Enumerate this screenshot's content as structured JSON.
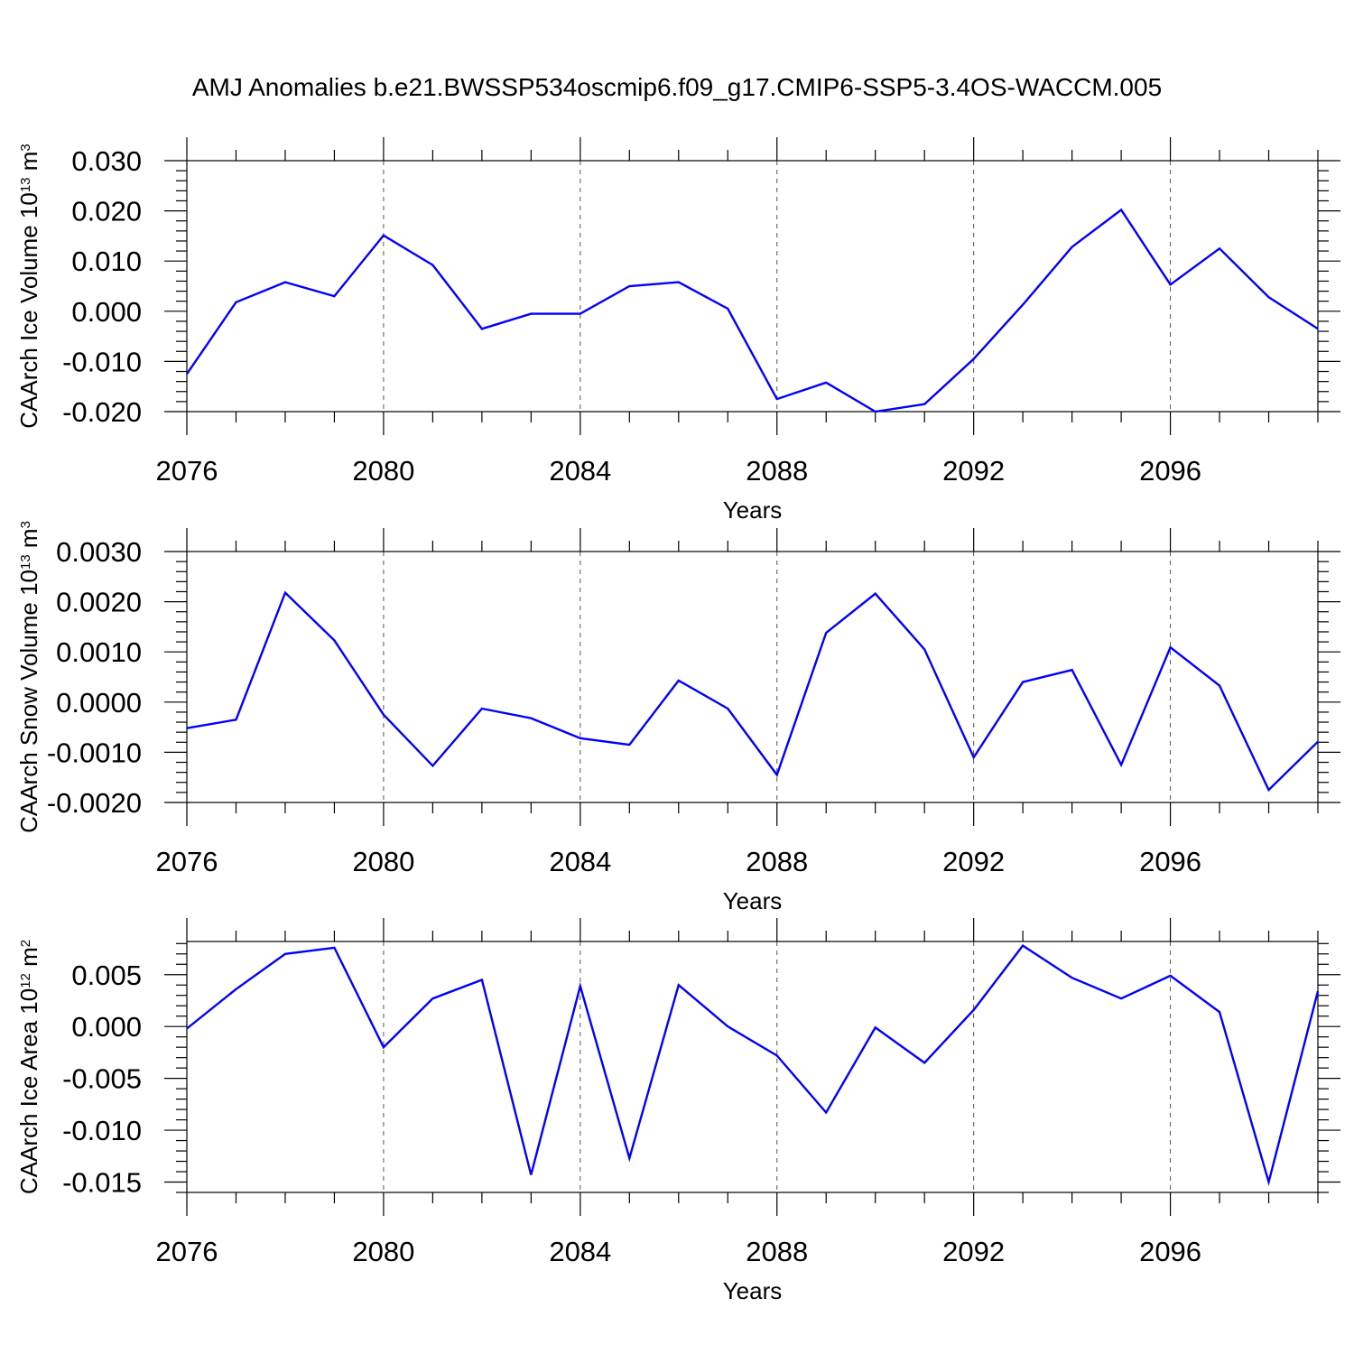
{
  "title": "AMJ Anomalies b.e21.BWSSP534oscmip6.f09_g17.CMIP6-SSP5-3.4OS-WACCM.005",
  "colors": {
    "series": "#0000ff",
    "frame": "#000000",
    "grid": "#555555"
  },
  "chart_data": [
    {
      "type": "line",
      "ylabel": {
        "text": "CAArch Ice Volume 10",
        "exponent": "13",
        "unit": "m",
        "unit_exponent": "3"
      },
      "xlabel": "Years",
      "xlim": [
        2076,
        2099
      ],
      "ylim": [
        -0.02,
        0.03
      ],
      "grid": {
        "x": "dashed",
        "y": false
      },
      "x_ticks": [
        2076,
        2080,
        2084,
        2088,
        2092,
        2096
      ],
      "x_tick_labels": [
        "2076",
        "2080",
        "2084",
        "2088",
        "2092",
        "2096"
      ],
      "y_ticks": [
        -0.02,
        -0.01,
        0.0,
        0.01,
        0.02,
        0.03
      ],
      "y_tick_labels": [
        "-0.020",
        "-0.010",
        "0.000",
        "0.010",
        "0.020",
        "0.030"
      ],
      "x": [
        2076,
        2077,
        2078,
        2079,
        2080,
        2081,
        2082,
        2083,
        2084,
        2085,
        2086,
        2087,
        2088,
        2089,
        2090,
        2091,
        2092,
        2093,
        2094,
        2095,
        2096,
        2097,
        2098,
        2099
      ],
      "y": [
        -0.0125,
        0.0018,
        0.0058,
        0.003,
        0.0151,
        0.0092,
        -0.0035,
        -0.0005,
        -0.0005,
        0.005,
        0.0058,
        0.0005,
        -0.0175,
        -0.0142,
        -0.02,
        -0.0185,
        -0.0095,
        0.0013,
        0.0128,
        0.0202,
        0.0053,
        0.0125,
        0.0028,
        -0.0035
      ]
    },
    {
      "type": "line",
      "ylabel": {
        "text": "CAArch Snow Volume 10",
        "exponent": "13",
        "unit": "m",
        "unit_exponent": "3"
      },
      "xlabel": "Years",
      "xlim": [
        2076,
        2099
      ],
      "ylim": [
        -0.002,
        0.003
      ],
      "grid": {
        "x": "dashed",
        "y": false
      },
      "x_ticks": [
        2076,
        2080,
        2084,
        2088,
        2092,
        2096
      ],
      "x_tick_labels": [
        "2076",
        "2080",
        "2084",
        "2088",
        "2092",
        "2096"
      ],
      "y_ticks": [
        -0.002,
        -0.001,
        0.0,
        0.001,
        0.002,
        0.003
      ],
      "y_tick_labels": [
        "-0.0020",
        "-0.0010",
        "0.0000",
        "0.0010",
        "0.0020",
        "0.0030"
      ],
      "x": [
        2076,
        2077,
        2078,
        2079,
        2080,
        2081,
        2082,
        2083,
        2084,
        2085,
        2086,
        2087,
        2088,
        2089,
        2090,
        2091,
        2092,
        2093,
        2094,
        2095,
        2096,
        2097,
        2098,
        2099
      ],
      "y": [
        -0.00052,
        -0.00035,
        0.00218,
        0.00123,
        -0.00025,
        -0.00127,
        -0.00013,
        -0.00032,
        -0.00072,
        -0.00085,
        0.00043,
        -0.00013,
        -0.00145,
        0.00138,
        0.00216,
        0.00105,
        -0.0011,
        0.0004,
        0.00064,
        -0.00125,
        0.00109,
        0.00033,
        -0.00175,
        -0.00079
      ]
    },
    {
      "type": "line",
      "ylabel": {
        "text": "CAArch Ice Area 10",
        "exponent": "12",
        "unit": "m",
        "unit_exponent": "2"
      },
      "xlabel": "Years",
      "xlim": [
        2076,
        2099
      ],
      "ylim": [
        -0.016,
        0.0082
      ],
      "grid": {
        "x": "dashed",
        "y": false
      },
      "x_ticks": [
        2076,
        2080,
        2084,
        2088,
        2092,
        2096
      ],
      "x_tick_labels": [
        "2076",
        "2080",
        "2084",
        "2088",
        "2092",
        "2096"
      ],
      "y_ticks": [
        -0.015,
        -0.01,
        -0.005,
        0.0,
        0.005
      ],
      "y_tick_labels": [
        "-0.015",
        "-0.010",
        "-0.005",
        "0.000",
        "0.005"
      ],
      "x": [
        2076,
        2077,
        2078,
        2079,
        2080,
        2081,
        2082,
        2083,
        2084,
        2085,
        2086,
        2087,
        2088,
        2089,
        2090,
        2091,
        2092,
        2093,
        2094,
        2095,
        2096,
        2097,
        2098,
        2099
      ],
      "y": [
        -0.0002,
        0.0036,
        0.007,
        0.0076,
        -0.002,
        0.0027,
        0.0045,
        -0.0143,
        0.0039,
        -0.0127,
        0.004,
        0.0,
        -0.0028,
        -0.0083,
        -0.0001,
        -0.0035,
        0.0016,
        0.0078,
        0.0047,
        0.0027,
        0.0049,
        0.0014,
        -0.015,
        0.0034
      ]
    }
  ]
}
